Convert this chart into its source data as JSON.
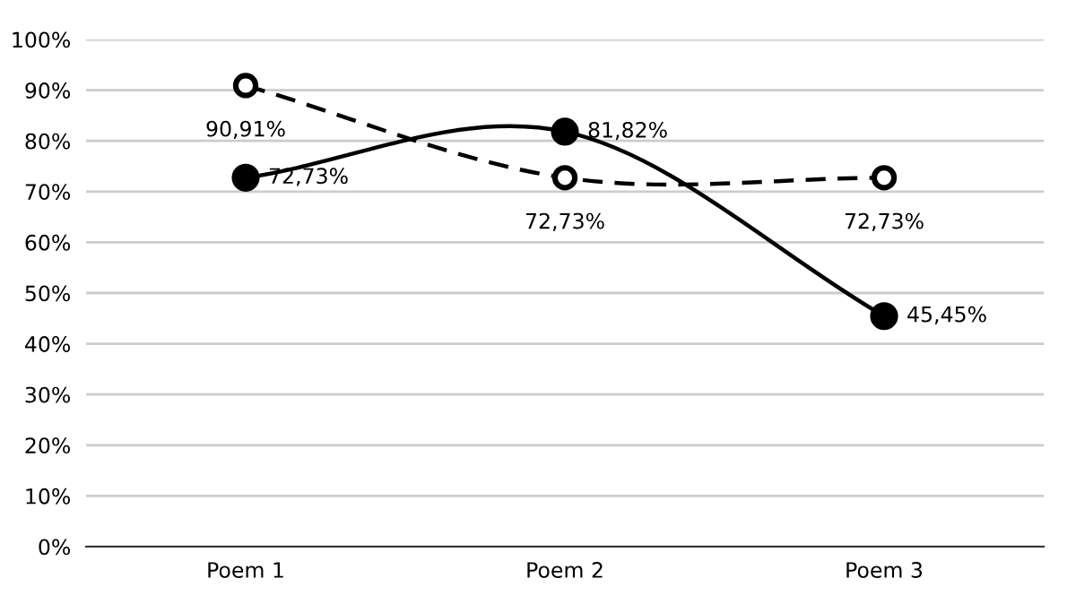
{
  "chart_data": {
    "type": "line",
    "categories": [
      "Poem 1",
      "Poem 2",
      "Poem 3"
    ],
    "series": [
      {
        "color": "#000000",
        "values": [
          72.73,
          81.82,
          45.45
        ],
        "value_labels": [
          "72,73%",
          "81,82%",
          "45,45%"
        ],
        "line_style": "solid",
        "marker": "circle"
      },
      {
        "color": "#000000",
        "values": [
          90.91,
          72.73,
          72.73
        ],
        "value_labels": [
          "90,91%",
          "72,73%",
          "72,73%"
        ],
        "line_style": "dashed",
        "marker": "circle"
      }
    ],
    "ylim": [
      0,
      100
    ],
    "yticks": [
      {
        "value": 0,
        "label": "0%"
      },
      {
        "value": 10,
        "label": "10%"
      },
      {
        "value": 20,
        "label": "20%"
      },
      {
        "value": 30,
        "label": "30%"
      },
      {
        "value": 40,
        "label": "40%"
      },
      {
        "value": 50,
        "label": "50%"
      },
      {
        "value": 60,
        "label": "60%"
      },
      {
        "value": 70,
        "label": "70%"
      },
      {
        "value": 80,
        "label": "80%"
      },
      {
        "value": 90,
        "label": "90%"
      },
      {
        "value": 100,
        "label": "100%"
      }
    ],
    "grid": "y",
    "legend": false
  }
}
